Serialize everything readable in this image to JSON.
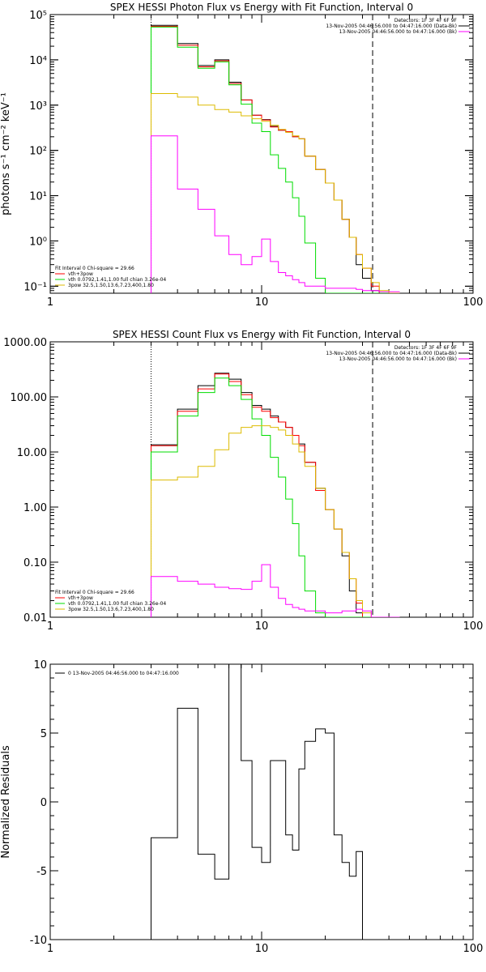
{
  "chart_data": [
    {
      "type": "line",
      "title": "SPEX HESSI Photon Flux vs Energy with Fit Function, Interval 0",
      "ylabel": "photons s⁻¹ cm⁻² keV⁻¹",
      "x_scale": "log",
      "y_scale": "log",
      "xlim": [
        1,
        100
      ],
      "ylim": [
        0.07,
        100000
      ],
      "x_ticks": [
        {
          "v": 1,
          "label": "1"
        },
        {
          "v": 10,
          "label": "10"
        },
        {
          "v": 100,
          "label": "100"
        }
      ],
      "y_ticks": [
        {
          "v": 0.1,
          "label": "10⁻¹"
        },
        {
          "v": 1,
          "label": "10⁰"
        },
        {
          "v": 10,
          "label": "10¹"
        },
        {
          "v": 100,
          "label": "10²"
        },
        {
          "v": 1000,
          "label": "10³"
        },
        {
          "v": 10000,
          "label": "10⁴"
        },
        {
          "v": 100000,
          "label": "10⁵"
        }
      ],
      "vlines": [
        {
          "x": 3.0,
          "style": "dotted"
        },
        {
          "x": 33.5,
          "style": "dashed"
        }
      ],
      "edges": [
        3,
        4,
        5,
        6,
        7,
        8,
        9,
        10,
        11,
        12,
        13,
        14,
        15,
        16,
        18,
        20,
        22,
        24,
        26,
        28,
        30,
        33,
        36,
        40,
        45
      ],
      "series": [
        {
          "color": "#000000",
          "values": [
            58000,
            23000,
            7500,
            10000,
            3200,
            1300,
            600,
            480,
            340,
            280,
            260,
            200,
            180,
            75,
            38,
            19,
            8,
            3,
            1.2,
            0.3,
            0.15,
            0.08,
            0.07,
            0.07
          ]
        },
        {
          "color": "#ff0000",
          "values": [
            55000,
            21000,
            7000,
            9500,
            3000,
            1300,
            600,
            470,
            330,
            280,
            260,
            200,
            180,
            75,
            38,
            19,
            8,
            3,
            1.2,
            0.5,
            0.25,
            0.1,
            0.07,
            0.07
          ]
        },
        {
          "color": "#00dd00",
          "values": [
            53000,
            19000,
            6500,
            9000,
            2800,
            1050,
            400,
            260,
            80,
            40,
            20,
            9,
            3.5,
            0.9,
            0.15,
            0.07,
            0.07,
            0.07,
            0.07,
            0.07,
            0.07,
            0.07,
            0.07,
            0.07
          ]
        },
        {
          "color": "#ddbb00",
          "values": [
            1800,
            1500,
            1000,
            800,
            700,
            580,
            500,
            440,
            360,
            290,
            250,
            210,
            180,
            75,
            38,
            19,
            8,
            3,
            1.2,
            0.5,
            0.25,
            0.12,
            0.08,
            0.07
          ]
        },
        {
          "color": "#ff00ff",
          "values": [
            210,
            14,
            5,
            1.3,
            0.5,
            0.3,
            0.45,
            1.1,
            0.35,
            0.2,
            0.17,
            0.14,
            0.12,
            0.1,
            0.1,
            0.09,
            0.09,
            0.09,
            0.09,
            0.085,
            0.08,
            0.08,
            0.075,
            0.075
          ]
        }
      ],
      "legend_top": [
        {
          "text": "Detectors: 1F 3F 4F 6F 9F",
          "color": ""
        },
        {
          "text": "13-Nov-2005 04:46:56.000 to 04:47:16.000 (Data-Bk)",
          "color": "#000000"
        },
        {
          "text": "13-Nov-2005 04:46:56.000 to 04:47:16.000 (Bk)",
          "color": "#ff00ff"
        }
      ],
      "legend_bottom": [
        {
          "text": "Fit Interval 0   Chi-square = 29.66",
          "color": ""
        },
        {
          "text": "vth+3pow",
          "color": "#ff0000"
        },
        {
          "text": "vth 0.0792,1.41,1.00  full chian 3.26e-04",
          "color": "#00dd00"
        },
        {
          "text": "3pow 32.5,1.50,13.6,7.23,400,1.80",
          "color": "#ddbb00"
        }
      ]
    },
    {
      "type": "line",
      "title": "SPEX HESSI Count Flux vs Energy with Fit Function, Interval 0",
      "ylabel": "",
      "x_scale": "log",
      "y_scale": "log",
      "xlim": [
        1,
        100
      ],
      "ylim": [
        0.01,
        1000
      ],
      "x_ticks": [
        {
          "v": 1,
          "label": "1"
        },
        {
          "v": 10,
          "label": "10"
        },
        {
          "v": 100,
          "label": "100"
        }
      ],
      "y_ticks": [
        {
          "v": 0.01,
          "label": "0.01"
        },
        {
          "v": 0.1,
          "label": "0.10"
        },
        {
          "v": 1,
          "label": "1.00"
        },
        {
          "v": 10,
          "label": "10.00"
        },
        {
          "v": 100,
          "label": "100.00"
        },
        {
          "v": 1000,
          "label": "1000.00"
        }
      ],
      "vlines": [
        {
          "x": 3.0,
          "style": "dotted"
        },
        {
          "x": 33.5,
          "style": "dashed"
        }
      ],
      "edges": [
        3,
        4,
        5,
        6,
        7,
        8,
        9,
        10,
        11,
        12,
        13,
        14,
        15,
        16,
        18,
        20,
        22,
        24,
        26,
        28,
        30,
        33,
        36,
        40,
        45
      ],
      "series": [
        {
          "color": "#000000",
          "values": [
            13.5,
            60,
            160,
            270,
            210,
            120,
            70,
            60,
            45,
            35,
            28,
            20,
            14,
            6.5,
            2.2,
            0.9,
            0.4,
            0.13,
            0.03,
            0.012,
            0.01,
            0.01,
            0.01,
            0.01
          ]
        },
        {
          "color": "#ff0000",
          "values": [
            13,
            55,
            140,
            260,
            190,
            110,
            65,
            55,
            42,
            35,
            28,
            20,
            13,
            6.5,
            2,
            0.9,
            0.4,
            0.15,
            0.05,
            0.018,
            0.01,
            0.01,
            0.01,
            0.01
          ]
        },
        {
          "color": "#00dd00",
          "values": [
            10,
            45,
            120,
            220,
            160,
            90,
            40,
            20,
            8,
            3.5,
            1.4,
            0.5,
            0.13,
            0.03,
            0.012,
            0.01,
            0.01,
            0.01,
            0.01,
            0.01,
            0.01,
            0.01,
            0.01,
            0.01
          ]
        },
        {
          "color": "#ddbb00",
          "values": [
            3.1,
            3.5,
            5.5,
            11,
            22,
            28,
            30,
            30,
            28,
            25,
            20,
            14,
            10,
            5.5,
            2.2,
            0.9,
            0.4,
            0.15,
            0.05,
            0.02,
            0.012,
            0.01,
            0.01,
            0.01
          ]
        },
        {
          "color": "#ff00ff",
          "values": [
            0.055,
            0.045,
            0.04,
            0.035,
            0.033,
            0.032,
            0.045,
            0.09,
            0.035,
            0.022,
            0.017,
            0.015,
            0.014,
            0.013,
            0.013,
            0.012,
            0.012,
            0.013,
            0.013,
            0.014,
            0.013,
            0.01,
            0.01,
            0.01
          ]
        }
      ],
      "legend_top": [
        {
          "text": "Detectors: 1F 3F 4F 6F 9F",
          "color": ""
        },
        {
          "text": "13-Nov-2005 04:46:56.000 to 04:47:16.000 (Data-Bk)",
          "color": "#000000"
        },
        {
          "text": "13-Nov-2005 04:46:56.000 to 04:47:16.000 (Bk)",
          "color": "#ff00ff"
        }
      ],
      "legend_bottom": [
        {
          "text": "Fit Interval 0   Chi-square = 29.66",
          "color": ""
        },
        {
          "text": "vth+3pow",
          "color": "#ff0000"
        },
        {
          "text": "vth 0.0792,1.41,1.00  full chian 3.26e-04",
          "color": "#00dd00"
        },
        {
          "text": "3pow 32.5,1.50,13.6,7.23,400,1.80",
          "color": "#ddbb00"
        }
      ]
    },
    {
      "type": "line",
      "title": "",
      "ylabel": "Normalized Residuals",
      "x_scale": "log",
      "y_scale": "linear",
      "xlim": [
        1,
        100
      ],
      "ylim": [
        -10,
        10
      ],
      "x_ticks": [
        {
          "v": 1,
          "label": "1"
        },
        {
          "v": 10,
          "label": "10"
        },
        {
          "v": 100,
          "label": "100"
        }
      ],
      "y_ticks": [
        {
          "v": -10,
          "label": "-10"
        },
        {
          "v": -5,
          "label": "-5"
        },
        {
          "v": 0,
          "label": "0"
        },
        {
          "v": 5,
          "label": "5"
        },
        {
          "v": 10,
          "label": "10"
        }
      ],
      "vlines": [],
      "edges": [
        3,
        4,
        5,
        6,
        7,
        8,
        9,
        10,
        11,
        12,
        13,
        14,
        15,
        16,
        18,
        20,
        22,
        24,
        26,
        28,
        30,
        33
      ],
      "series": [
        {
          "color": "#000000",
          "values": [
            -2.6,
            6.8,
            -3.8,
            -5.6,
            10,
            3,
            -3.3,
            -4.4,
            3,
            3,
            -2.4,
            -3.5,
            2.4,
            4.4,
            5.3,
            5,
            -2.4,
            -4.4,
            -5.4,
            -3.6,
            -10
          ]
        }
      ],
      "legend_top": [
        {
          "text": "0  13-Nov-2005 04:46:56.000 to 04:47:16.000",
          "color": "#000000"
        }
      ],
      "legend_bottom": []
    }
  ]
}
